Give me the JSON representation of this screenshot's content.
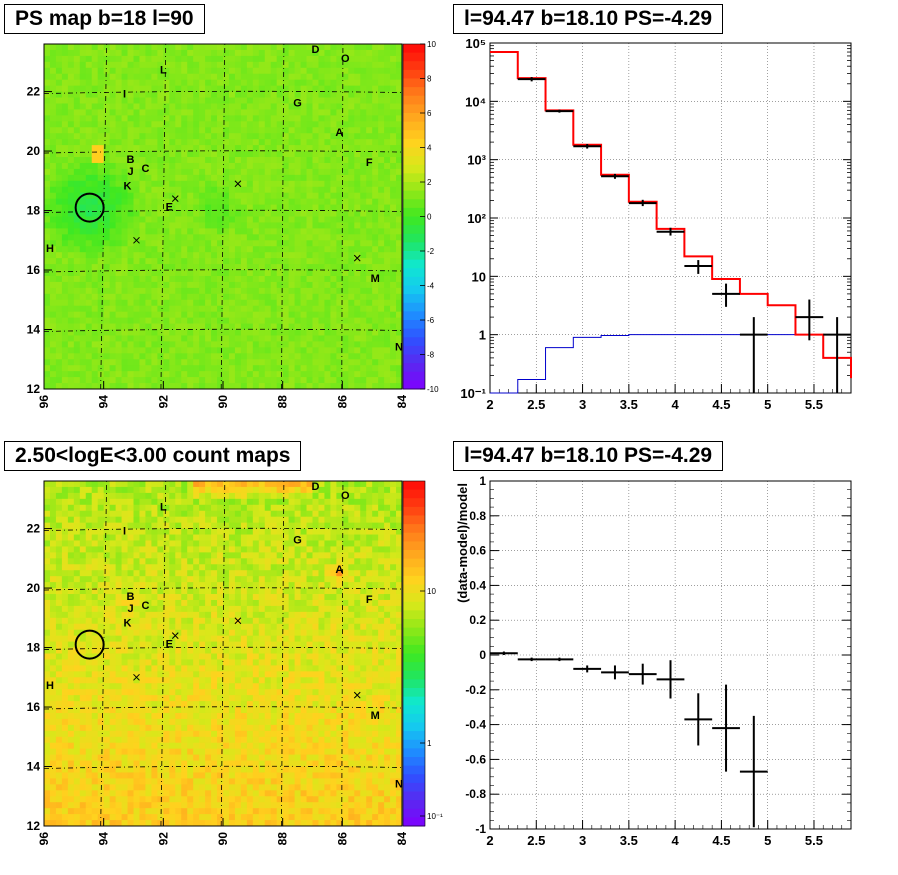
{
  "panels": {
    "ps_map": {
      "title": "PS map b=18 l=90"
    },
    "count_map": {
      "title": "2.50<logE<3.00 count maps"
    },
    "spectrum": {
      "title": "l=94.47 b=18.10 PS=-4.29"
    },
    "residual": {
      "title": "l=94.47 b=18.10 PS=-4.29"
    }
  },
  "colors": {
    "data": "#000000",
    "model": "#ff0000",
    "background_model": "#0000cc",
    "map_bg_top": "#22e622",
    "map_bg_bottom": "#f2c21a"
  },
  "chart_data": [
    {
      "id": "ps_map",
      "type": "heatmap",
      "title": "PS map b=18 l=90",
      "xlim": [
        96,
        84
      ],
      "ylim": [
        12,
        23.6
      ],
      "x_ticks": [
        "96",
        "94",
        "92",
        "90",
        "88",
        "86",
        "84"
      ],
      "y_ticks": [
        "12",
        "14",
        "16",
        "18",
        "20",
        "22"
      ],
      "colorbar": {
        "min": -10,
        "max": 10,
        "ticks": [
          "10",
          "8",
          "6",
          "4",
          "2",
          "0",
          "-2",
          "-4",
          "-6",
          "-8",
          "-10"
        ]
      },
      "source_labels": [
        {
          "label": "D",
          "l": 86.9,
          "b": 23.3
        },
        {
          "label": "O",
          "l": 85.9,
          "b": 23.0
        },
        {
          "label": "L",
          "l": 92.0,
          "b": 22.6
        },
        {
          "label": "I",
          "l": 93.3,
          "b": 21.8
        },
        {
          "label": "G",
          "l": 87.5,
          "b": 21.5
        },
        {
          "label": "A",
          "l": 86.1,
          "b": 20.5
        },
        {
          "label": "B",
          "l": 93.1,
          "b": 19.6
        },
        {
          "label": "J",
          "l": 93.1,
          "b": 19.2
        },
        {
          "label": "C",
          "l": 92.6,
          "b": 19.3
        },
        {
          "label": "F",
          "l": 85.1,
          "b": 19.5
        },
        {
          "label": "K",
          "l": 93.2,
          "b": 18.7
        },
        {
          "label": "E",
          "l": 91.8,
          "b": 18.0
        },
        {
          "label": "H",
          "l": 95.8,
          "b": 16.6
        },
        {
          "label": "M",
          "l": 84.9,
          "b": 15.6
        },
        {
          "label": "N",
          "l": 84.1,
          "b": 13.3
        }
      ],
      "cross_markers": [
        {
          "l": 91.6,
          "b": 18.4
        },
        {
          "l": 89.5,
          "b": 18.9
        },
        {
          "l": 92.9,
          "b": 17.0
        },
        {
          "l": 85.5,
          "b": 16.4
        }
      ],
      "circle": {
        "l": 94.47,
        "b": 18.1
      }
    },
    {
      "id": "count_map",
      "type": "heatmap",
      "title": "2.50<logE<3.00 count maps",
      "xlim": [
        96,
        84
      ],
      "ylim": [
        12,
        23.6
      ],
      "x_ticks": [
        "96",
        "94",
        "92",
        "90",
        "88",
        "86",
        "84"
      ],
      "y_ticks": [
        "12",
        "14",
        "16",
        "18",
        "20",
        "22"
      ],
      "colorbar": {
        "log": true,
        "ticks": [
          "10",
          "1",
          "10⁻¹"
        ]
      },
      "source_labels": [
        {
          "label": "D",
          "l": 86.9,
          "b": 23.3
        },
        {
          "label": "O",
          "l": 85.9,
          "b": 23.0
        },
        {
          "label": "L",
          "l": 92.0,
          "b": 22.6
        },
        {
          "label": "I",
          "l": 93.3,
          "b": 21.8
        },
        {
          "label": "G",
          "l": 87.5,
          "b": 21.5
        },
        {
          "label": "A",
          "l": 86.1,
          "b": 20.5
        },
        {
          "label": "B",
          "l": 93.1,
          "b": 19.6
        },
        {
          "label": "J",
          "l": 93.1,
          "b": 19.2
        },
        {
          "label": "C",
          "l": 92.6,
          "b": 19.3
        },
        {
          "label": "F",
          "l": 85.1,
          "b": 19.5
        },
        {
          "label": "K",
          "l": 93.2,
          "b": 18.7
        },
        {
          "label": "E",
          "l": 91.8,
          "b": 18.0
        },
        {
          "label": "H",
          "l": 95.8,
          "b": 16.6
        },
        {
          "label": "M",
          "l": 84.9,
          "b": 15.6
        },
        {
          "label": "N",
          "l": 84.1,
          "b": 13.3
        }
      ],
      "cross_markers": [
        {
          "l": 91.6,
          "b": 18.4
        },
        {
          "l": 89.5,
          "b": 18.9
        },
        {
          "l": 92.9,
          "b": 17.0
        },
        {
          "l": 85.5,
          "b": 16.4
        }
      ],
      "circle": {
        "l": 94.47,
        "b": 18.1
      }
    },
    {
      "id": "spectrum",
      "type": "line",
      "title": "l=94.47 b=18.10 PS=-4.29",
      "xlim": [
        2,
        5.9
      ],
      "ylim": [
        0.1,
        100000
      ],
      "ylog": true,
      "grid": true,
      "x_ticks": [
        "2",
        "2.5",
        "3",
        "3.5",
        "4",
        "4.5",
        "5",
        "5.5"
      ],
      "y_ticks": [
        "10⁻¹",
        "1",
        "10",
        "10²",
        "10³",
        "10⁴",
        "10⁵"
      ],
      "bin_edges": [
        2.0,
        2.3,
        2.6,
        2.9,
        3.2,
        3.5,
        3.8,
        4.1,
        4.4,
        4.7,
        5.0,
        5.3,
        5.6,
        5.9
      ],
      "series": [
        {
          "name": "model",
          "type": "step",
          "values": [
            70000,
            25000,
            7000,
            1800,
            550,
            190,
            65,
            22,
            9,
            5,
            3.2,
            1.0,
            0.4,
            0.18
          ]
        },
        {
          "name": "data",
          "type": "errorbar",
          "points": [
            {
              "x": 2.45,
              "y": 24000,
              "ylo": 22000,
              "yhi": 26000
            },
            {
              "x": 2.75,
              "y": 6800,
              "ylo": 6400,
              "yhi": 7200
            },
            {
              "x": 3.05,
              "y": 1700,
              "ylo": 1550,
              "yhi": 1850
            },
            {
              "x": 3.35,
              "y": 520,
              "ylo": 470,
              "yhi": 570
            },
            {
              "x": 3.65,
              "y": 180,
              "ylo": 160,
              "yhi": 205
            },
            {
              "x": 3.95,
              "y": 58,
              "ylo": 50,
              "yhi": 68
            },
            {
              "x": 4.25,
              "y": 15,
              "ylo": 11,
              "yhi": 19
            },
            {
              "x": 4.55,
              "y": 5,
              "ylo": 3,
              "yhi": 7.5
            },
            {
              "x": 4.85,
              "y": 1,
              "ylo": 0.1,
              "yhi": 2
            },
            {
              "x": 5.45,
              "y": 2,
              "ylo": 0.8,
              "yhi": 4
            },
            {
              "x": 5.75,
              "y": 1,
              "ylo": 0.1,
              "yhi": 2
            }
          ]
        },
        {
          "name": "background",
          "type": "step",
          "values": [
            0.1,
            0.17,
            0.6,
            0.9,
            0.97,
            1,
            1,
            1,
            1,
            1,
            1,
            1,
            1,
            1
          ]
        }
      ]
    },
    {
      "id": "residual",
      "type": "scatter",
      "title": "l=94.47 b=18.10 PS=-4.29",
      "ylabel": "(data-model)/model",
      "xlim": [
        2,
        5.9
      ],
      "ylim": [
        -1,
        1
      ],
      "grid": true,
      "x_ticks": [
        "2",
        "2.5",
        "3",
        "3.5",
        "4",
        "4.5",
        "5",
        "5.5"
      ],
      "y_ticks": [
        "1",
        "0.8",
        "0.6",
        "0.4",
        "0.2",
        "0",
        "-0.2",
        "-0.4",
        "-0.6",
        "-0.8",
        "-1"
      ],
      "points": [
        {
          "x": 2.15,
          "y": 0.01,
          "xerr": 0.15,
          "yerr": 0.01
        },
        {
          "x": 2.45,
          "y": -0.025,
          "xerr": 0.15,
          "yerr": 0.01
        },
        {
          "x": 2.75,
          "y": -0.025,
          "xerr": 0.15,
          "yerr": 0.01
        },
        {
          "x": 3.05,
          "y": -0.08,
          "xerr": 0.15,
          "yerr": 0.02
        },
        {
          "x": 3.35,
          "y": -0.1,
          "xerr": 0.15,
          "yerr": 0.04
        },
        {
          "x": 3.65,
          "y": -0.11,
          "xerr": 0.15,
          "yerr": 0.06
        },
        {
          "x": 3.95,
          "y": -0.14,
          "xerr": 0.15,
          "yerr": 0.11
        },
        {
          "x": 4.25,
          "y": -0.37,
          "xerr": 0.15,
          "yerr": 0.15
        },
        {
          "x": 4.55,
          "y": -0.42,
          "xerr": 0.15,
          "yerr": 0.25
        },
        {
          "x": 4.85,
          "y": -0.67,
          "xerr": 0.15,
          "yerr": 0.32
        }
      ]
    }
  ]
}
